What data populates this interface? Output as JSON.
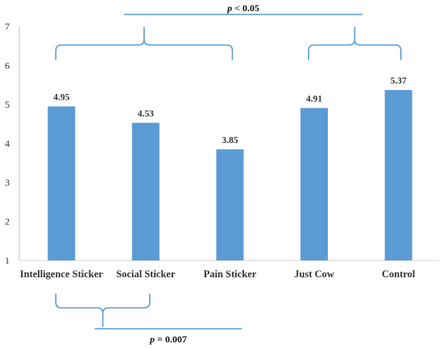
{
  "chart_data": {
    "type": "bar",
    "categories": [
      "Intelligence Sticker",
      "Social Sticker",
      "Pain Sticker",
      "Just Cow",
      "Control"
    ],
    "values": [
      4.95,
      4.53,
      3.85,
      4.91,
      5.37
    ],
    "data_labels": [
      "4.95",
      "4.53",
      "3.85",
      "4.91",
      "5.37"
    ],
    "y_ticks": [
      "1",
      "2",
      "3",
      "4",
      "5",
      "6",
      "7"
    ],
    "ylim": [
      1,
      7
    ],
    "title": "",
    "xlabel": "",
    "ylabel": "",
    "grid": false,
    "bar_color": "#5b9bd5",
    "annotations": [
      {
        "text_italic": "p",
        "text_rest": " < 0.05",
        "groups": [
          [
            0,
            2
          ],
          [
            3,
            4
          ]
        ],
        "position": "above"
      },
      {
        "text_italic": "p",
        "text_rest": " = 0.007",
        "groups": [
          [
            0,
            1
          ]
        ],
        "position": "below"
      }
    ],
    "bracket_color": "#5b9bd5"
  }
}
